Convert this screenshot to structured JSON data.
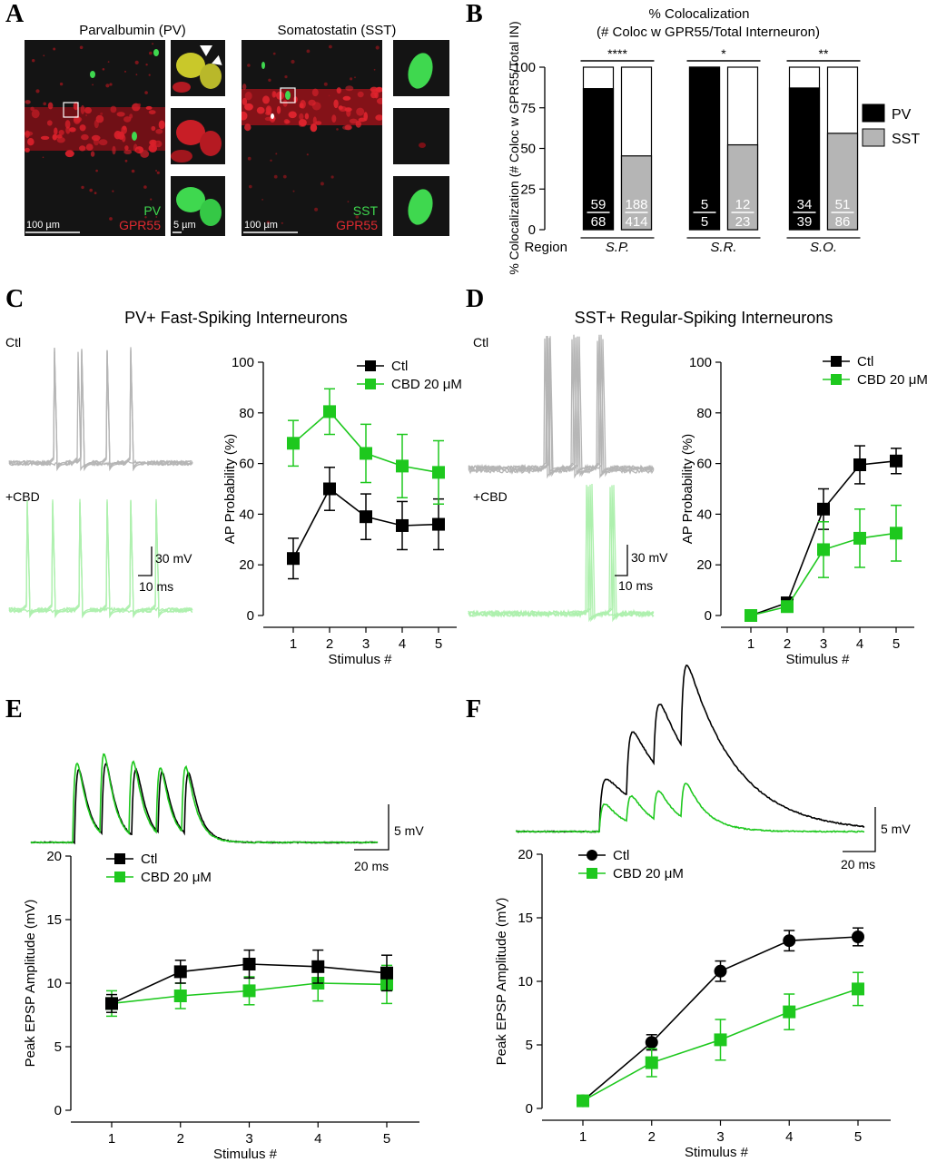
{
  "colors": {
    "black": "#000000",
    "green": "#1ec81e",
    "gray": "#b5b5b5",
    "light_green": "#aef0ae",
    "micro_bg": "#141414",
    "micro_red": "#d8202a",
    "micro_green": "#3fd84f"
  },
  "panels": {
    "A": "A",
    "B": "B",
    "C": "C",
    "D": "D",
    "E": "E",
    "F": "F"
  },
  "panelA": {
    "left_title": "Parvalbumin (PV)",
    "right_title": "Somatostatin (SST)",
    "left_green_label": "PV",
    "left_red_label": "GPR55",
    "right_green_label": "SST",
    "right_red_label": "GPR55",
    "scale_large": "100 µm",
    "scale_small": "5 µm"
  },
  "panelC": {
    "title": "PV+ Fast-Spiking Interneurons",
    "ctl_label": "Ctl",
    "cbd_label": "+CBD",
    "scale_mv": "30 mV",
    "scale_ms": "10 ms"
  },
  "panelD": {
    "title": "SST+ Regular-Spiking Interneurons",
    "ctl_label": "Ctl",
    "cbd_label": "+CBD",
    "scale_mv": "30 mV",
    "scale_ms": "10 ms"
  },
  "panelE": {
    "scale_mv": "5 mV",
    "scale_ms": "20 ms"
  },
  "panelF": {
    "scale_mv": "5 mV",
    "scale_ms": "20 ms"
  },
  "chart_data": [
    {
      "id": "B",
      "type": "bar",
      "title": "% Colocalization",
      "subtitle": "(# Coloc w GPR55/Total Interneuron)",
      "ylabel": "% Colocalization (# Coloc w GPR55/Total IN)",
      "xlabel": "Region",
      "ylim": [
        0,
        100
      ],
      "yticks": [
        0,
        25,
        50,
        75,
        100
      ],
      "categories": [
        "S.P.",
        "S.R.",
        "S.O."
      ],
      "significance": [
        "****",
        "*",
        "**"
      ],
      "legend": [
        "PV",
        "SST"
      ],
      "legend_position": "right",
      "series": [
        {
          "name": "PV",
          "color": "#000000",
          "values": [
            86.8,
            100,
            87.2
          ],
          "numerators": [
            "59",
            "5",
            "34"
          ],
          "denominators": [
            "68",
            "5",
            "39"
          ]
        },
        {
          "name": "SST",
          "color": "#b5b5b5",
          "values": [
            45.4,
            52.2,
            59.3
          ],
          "numerators": [
            "188",
            "12",
            "51"
          ],
          "denominators": [
            "414",
            "23",
            "86"
          ]
        }
      ]
    },
    {
      "id": "C",
      "type": "line",
      "xlabel": "Stimulus #",
      "ylabel": "AP Probability (%)",
      "x": [
        1,
        2,
        3,
        4,
        5
      ],
      "ylim": [
        0,
        100
      ],
      "yticks": [
        0,
        20,
        40,
        60,
        80,
        100
      ],
      "legend_position": "top-right",
      "series": [
        {
          "name": "Ctl",
          "color": "#000000",
          "marker": "square",
          "values": [
            22.5,
            50,
            39,
            35.5,
            36
          ],
          "errors": [
            8,
            8.5,
            9,
            9.5,
            10
          ]
        },
        {
          "name": "CBD 20 μM",
          "color": "#1ec81e",
          "marker": "square",
          "values": [
            68,
            80.5,
            64,
            59,
            56.5
          ],
          "errors": [
            9,
            9,
            11.5,
            12.5,
            12.5
          ]
        }
      ]
    },
    {
      "id": "D",
      "type": "line",
      "xlabel": "Stimulus #",
      "ylabel": "AP Probability (%)",
      "x": [
        1,
        2,
        3,
        4,
        5
      ],
      "ylim": [
        0,
        100
      ],
      "yticks": [
        0,
        20,
        40,
        60,
        80,
        100
      ],
      "legend_position": "top-right",
      "series": [
        {
          "name": "Ctl",
          "color": "#000000",
          "marker": "square",
          "values": [
            0,
            5,
            42,
            59.5,
            61
          ],
          "errors": [
            0,
            1.5,
            8,
            7.5,
            5
          ]
        },
        {
          "name": "CBD 20 μM",
          "color": "#1ec81e",
          "marker": "square",
          "values": [
            0,
            3.5,
            26,
            30.5,
            32.5
          ],
          "errors": [
            0,
            1.5,
            11,
            11.5,
            11
          ]
        }
      ]
    },
    {
      "id": "E",
      "type": "line",
      "xlabel": "Stimulus #",
      "ylabel": "Peak EPSP Amplitude (mV)",
      "x": [
        1,
        2,
        3,
        4,
        5
      ],
      "ylim": [
        0,
        20
      ],
      "yticks": [
        0,
        5,
        10,
        15,
        20
      ],
      "legend_position": "top-left",
      "series": [
        {
          "name": "Ctl",
          "color": "#000000",
          "marker": "square",
          "values": [
            8.4,
            10.9,
            11.5,
            11.3,
            10.8
          ],
          "errors": [
            0.7,
            0.9,
            1.1,
            1.3,
            1.4
          ]
        },
        {
          "name": "CBD 20 μM",
          "color": "#1ec81e",
          "marker": "square",
          "values": [
            8.4,
            9.0,
            9.4,
            10.0,
            9.9
          ],
          "errors": [
            1.0,
            1.0,
            1.1,
            1.4,
            1.5
          ]
        }
      ]
    },
    {
      "id": "F",
      "type": "line",
      "xlabel": "Stimulus #",
      "ylabel": "Peak EPSP Amplitude (mV)",
      "x": [
        1,
        2,
        3,
        4,
        5
      ],
      "ylim": [
        0,
        20
      ],
      "yticks": [
        0,
        5,
        10,
        15,
        20
      ],
      "legend_position": "top-left",
      "series": [
        {
          "name": "Ctl",
          "color": "#000000",
          "marker": "circle",
          "values": [
            0.6,
            5.2,
            10.8,
            13.2,
            13.5
          ],
          "errors": [
            0.2,
            0.6,
            0.8,
            0.8,
            0.7
          ]
        },
        {
          "name": "CBD 20 μM",
          "color": "#1ec81e",
          "marker": "square",
          "values": [
            0.6,
            3.6,
            5.4,
            7.6,
            9.4
          ],
          "errors": [
            0.2,
            1.1,
            1.6,
            1.4,
            1.3
          ]
        }
      ]
    }
  ]
}
